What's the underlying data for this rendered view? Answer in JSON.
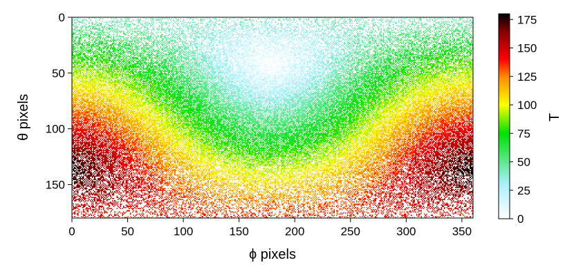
{
  "chart_data": {
    "type": "heatmap",
    "title": "",
    "xlabel": "ϕ pixels",
    "ylabel": "θ pixels",
    "xlim": [
      0,
      360
    ],
    "ylim": [
      180,
      0
    ],
    "y_inverted": true,
    "x_ticks": [
      0,
      50,
      100,
      150,
      200,
      250,
      300,
      350
    ],
    "y_ticks": [
      0,
      50,
      100,
      150
    ],
    "colorbar": {
      "label": "T",
      "range": [
        0,
        180
      ],
      "ticks": [
        0,
        25,
        50,
        75,
        100,
        125,
        150,
        175
      ],
      "colormap_stops": [
        {
          "value": 0,
          "color": "#ffffff"
        },
        {
          "value": 30,
          "color": "#aaf0ff"
        },
        {
          "value": 75,
          "color": "#00e000"
        },
        {
          "value": 100,
          "color": "#ffff00"
        },
        {
          "value": 125,
          "color": "#ff8800"
        },
        {
          "value": 140,
          "color": "#ff0000"
        },
        {
          "value": 165,
          "color": "#800000"
        },
        {
          "value": 180,
          "color": "#000000"
        }
      ]
    },
    "description_of_pattern": "Sparse pixel scatter; T ≈ angle between direction (θ,ϕ) and a reference direction near θ≈40, ϕ≈180; rows sampled sparsely near poles",
    "reference_direction": {
      "theta": 42,
      "phi": 178
    }
  }
}
